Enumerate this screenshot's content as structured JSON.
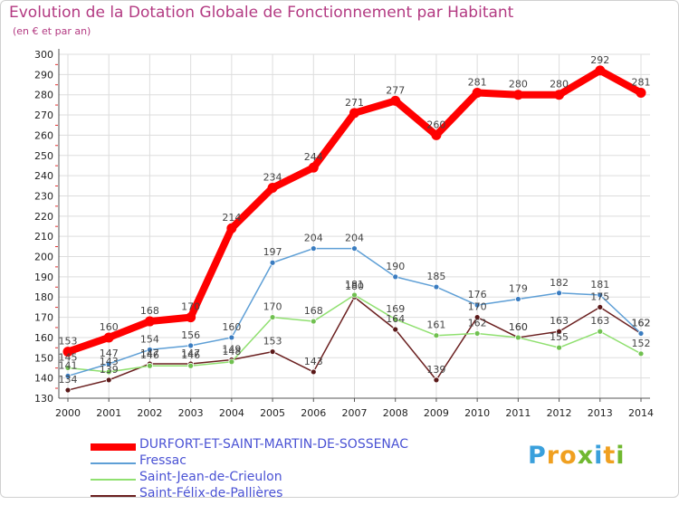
{
  "title": "Evolution de la Dotation Globale de Fonctionnement par Habitant",
  "subtitle": "(en € et par an)",
  "logo": {
    "p": "P",
    "r": "r",
    "o": "o",
    "x": "x",
    "i1": "i",
    "t": "t",
    "i2": "i",
    "colors": [
      "#3aa0dc",
      "#f0a020",
      "#70b830"
    ]
  },
  "chart_data": {
    "type": "line",
    "x": [
      "2000",
      "2001",
      "2002",
      "2003",
      "2004",
      "2005",
      "2006",
      "2007",
      "2008",
      "2009",
      "2010",
      "2011",
      "2012",
      "2013",
      "2014"
    ],
    "ylim": [
      130,
      300
    ],
    "yticks": [
      "130",
      "140",
      "150",
      "160",
      "170",
      "180",
      "190",
      "200",
      "210",
      "220",
      "230",
      "240",
      "250",
      "260",
      "270",
      "280",
      "290",
      "300"
    ],
    "grid": true,
    "legend": "bottom-left",
    "series": [
      {
        "name": "DURFORT-ET-SAINT-MARTIN-DE-SOSSENAC",
        "color": "#ff0000",
        "values": [
          153,
          160,
          168,
          170,
          214,
          234,
          244,
          271,
          277,
          260,
          281,
          280,
          280,
          292,
          281
        ]
      },
      {
        "name": "Fressac",
        "color": "#5e9fd6",
        "values": [
          141,
          147,
          154,
          156,
          160,
          197,
          204,
          204,
          190,
          185,
          176,
          179,
          182,
          181,
          162
        ]
      },
      {
        "name": "Saint-Jean-de-Crieulon",
        "color": "#90e070",
        "values": [
          145,
          143,
          146,
          146,
          148,
          170,
          168,
          181,
          169,
          161,
          162,
          160,
          155,
          163,
          152
        ]
      },
      {
        "name": "Saint-Félix-de-Pallières",
        "color": "#6b2020",
        "values": [
          134,
          139,
          147,
          147,
          149,
          153,
          143,
          180,
          164,
          139,
          170,
          160,
          163,
          175,
          162
        ]
      }
    ]
  }
}
